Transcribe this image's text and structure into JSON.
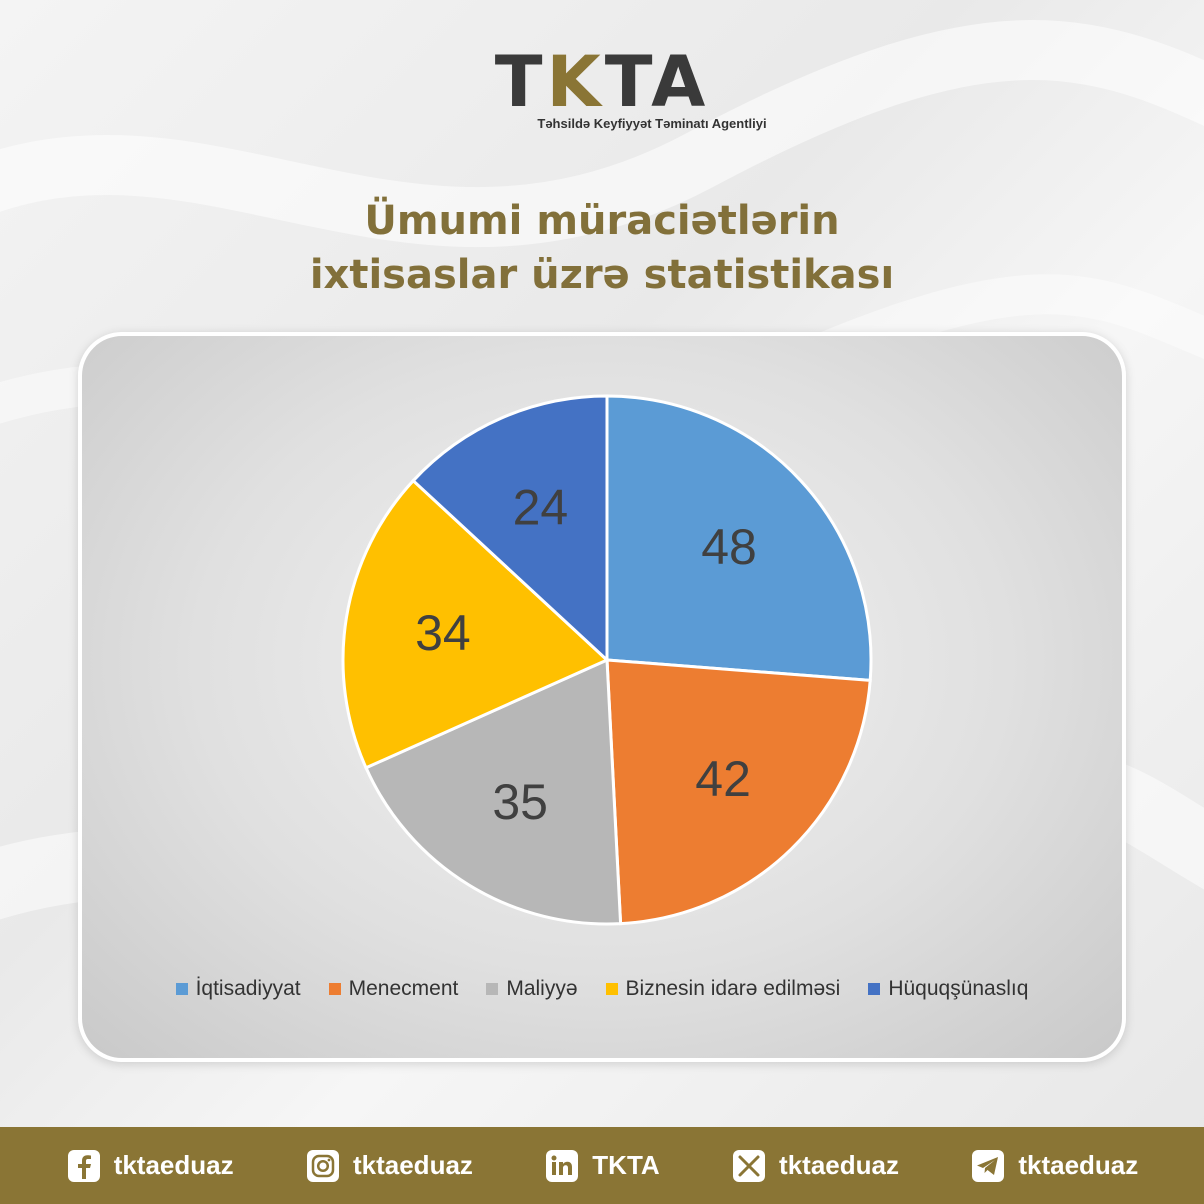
{
  "logo": {
    "mark_t": "T",
    "mark_k": "K",
    "mark_ta": "TA",
    "subtitle": "Təhsildə Keyfiyyət Təminatı Agentliyi"
  },
  "title_line1": "Ümumi müraciətlərin",
  "title_line2": "ixtisaslar üzrə statistikası",
  "chart_data": {
    "type": "pie",
    "title": "Ümumi müraciətlərin ixtisaslar üzrə statistikası",
    "categories": [
      "İqtisadiyyat",
      "Menecment",
      "Maliyyə",
      "Biznesin idarə edilməsi",
      "Hüquqşünaslıq"
    ],
    "values": [
      48,
      42,
      35,
      34,
      24
    ],
    "colors": [
      "#5b9bd5",
      "#ed7d31",
      "#b7b7b7",
      "#ffc000",
      "#4472c4"
    ],
    "legend_position": "bottom",
    "data_labels": true
  },
  "footer": {
    "items": [
      {
        "icon": "facebook-icon",
        "label": "tktaeduaz"
      },
      {
        "icon": "instagram-icon",
        "label": "tktaeduaz"
      },
      {
        "icon": "linkedin-icon",
        "label": "TKTA"
      },
      {
        "icon": "x-icon",
        "label": "tktaeduaz"
      },
      {
        "icon": "telegram-icon",
        "label": "tktaeduaz"
      }
    ]
  }
}
